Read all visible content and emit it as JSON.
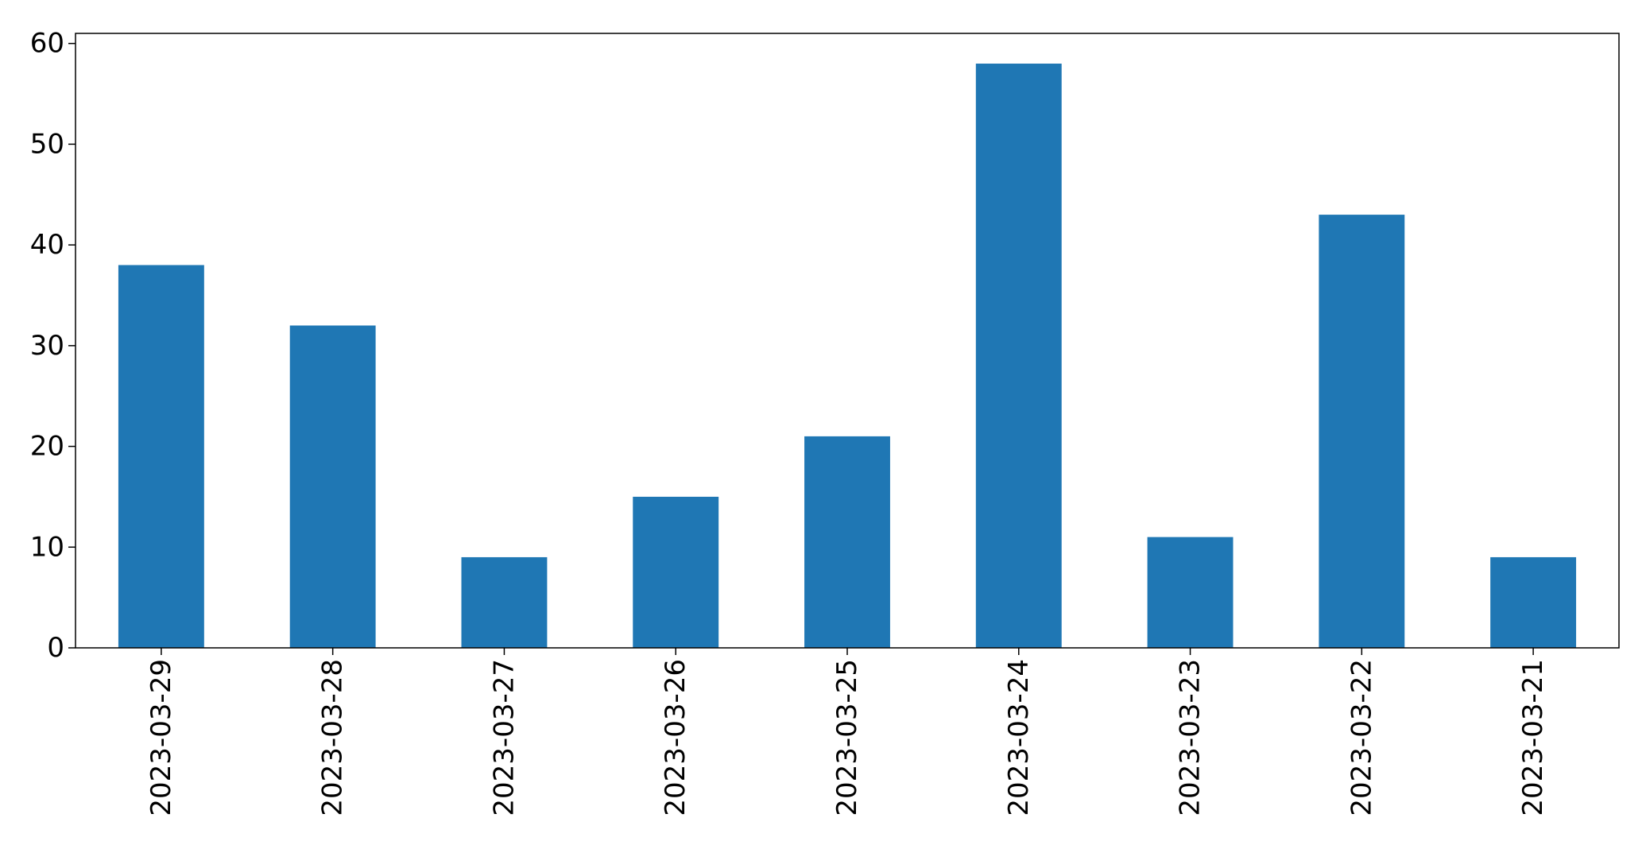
{
  "chart_data": {
    "type": "bar",
    "title": "",
    "xlabel": "",
    "ylabel": "",
    "categories": [
      "2023-03-29",
      "2023-03-28",
      "2023-03-27",
      "2023-03-26",
      "2023-03-25",
      "2023-03-24",
      "2023-03-23",
      "2023-03-22",
      "2023-03-21"
    ],
    "values": [
      38,
      32,
      9,
      15,
      21,
      58,
      11,
      43,
      9
    ],
    "ylim": [
      0,
      61
    ],
    "yticks": [
      0,
      10,
      20,
      30,
      40,
      50,
      60
    ],
    "bar_color": "#1f77b4",
    "grid": false,
    "legend": "none"
  }
}
